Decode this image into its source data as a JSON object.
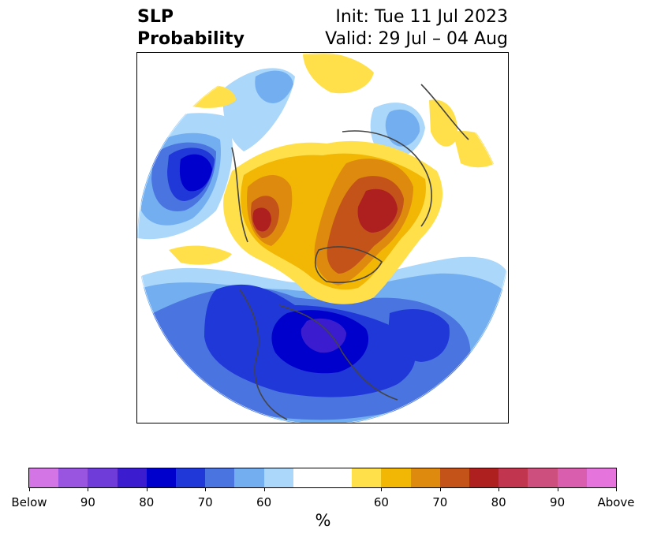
{
  "header": {
    "title_line1": "SLP",
    "title_line2": "Probability",
    "init": "Init: Tue 11 Jul 2023",
    "valid": "Valid: 29 Jul – 04 Aug"
  },
  "colorbar": {
    "colors": [
      "#d475e6",
      "#9a55e0",
      "#6f3bd9",
      "#3b1dcf",
      "#0000cc",
      "#2138d8",
      "#4a74e0",
      "#72aef0",
      "#aad7fa",
      "#ffffff",
      "#ffffff",
      "#ffe04a",
      "#f2b705",
      "#de8a0e",
      "#c4531a",
      "#ae2020",
      "#c2354e",
      "#cc4f7e",
      "#d95fae",
      "#e575dd"
    ],
    "tick_labels": [
      "Below",
      "90",
      "80",
      "70",
      "60",
      "60",
      "70",
      "80",
      "90",
      "Above"
    ],
    "unit": "%"
  },
  "map": {
    "region": "Northern Hemisphere polar stereographic",
    "below_colors": {
      "b1": "#aad7fa",
      "b2": "#72aef0",
      "b3": "#4a74e0",
      "b4": "#2138d8",
      "b5": "#0000cc",
      "b6": "#3b1dcf"
    },
    "above_colors": {
      "a1": "#ffe04a",
      "a2": "#f2b705",
      "a3": "#de8a0e",
      "a4": "#c4531a",
      "a5": "#ae2020"
    }
  }
}
